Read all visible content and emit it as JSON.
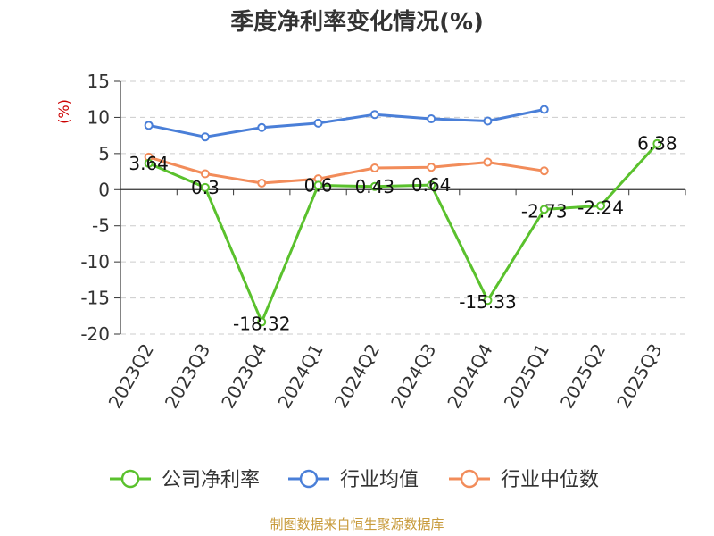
{
  "chart_data": {
    "type": "line",
    "title": "季度净利率变化情况(%)",
    "ylabel": "(%)",
    "ylabel_color": "#cc0000",
    "categories": [
      "2023Q2",
      "2023Q3",
      "2023Q4",
      "2024Q1",
      "2024Q2",
      "2024Q3",
      "2024Q4",
      "2025Q1",
      "2025Q2",
      "2025Q3"
    ],
    "ylim": [
      -20,
      15
    ],
    "yticks": [
      15,
      10,
      5,
      0,
      -5,
      -10,
      -15,
      -20
    ],
    "grid": true,
    "legend_position": "bottom",
    "series": [
      {
        "name": "公司净利率",
        "color": "#5ac12d",
        "values": [
          3.64,
          0.3,
          -18.32,
          0.6,
          0.43,
          0.64,
          -15.33,
          -2.73,
          -2.24,
          6.38
        ],
        "labels": [
          "3.64",
          "0.3",
          "-18.32",
          "0.6",
          "0.43",
          "0.64",
          "-15.33",
          "-2.73",
          "-2.24",
          "6.38"
        ]
      },
      {
        "name": "行业均值",
        "color": "#4a7fd8",
        "values": [
          8.9,
          7.3,
          8.6,
          9.2,
          10.4,
          9.8,
          9.5,
          11.1,
          null,
          null
        ]
      },
      {
        "name": "行业中位数",
        "color": "#f28c5a",
        "values": [
          4.5,
          2.2,
          0.9,
          1.5,
          3.0,
          3.1,
          3.8,
          2.6,
          null,
          null
        ]
      }
    ]
  },
  "source": {
    "text": "制图数据来自恒生聚源数据库",
    "color": "#c89b3c"
  }
}
